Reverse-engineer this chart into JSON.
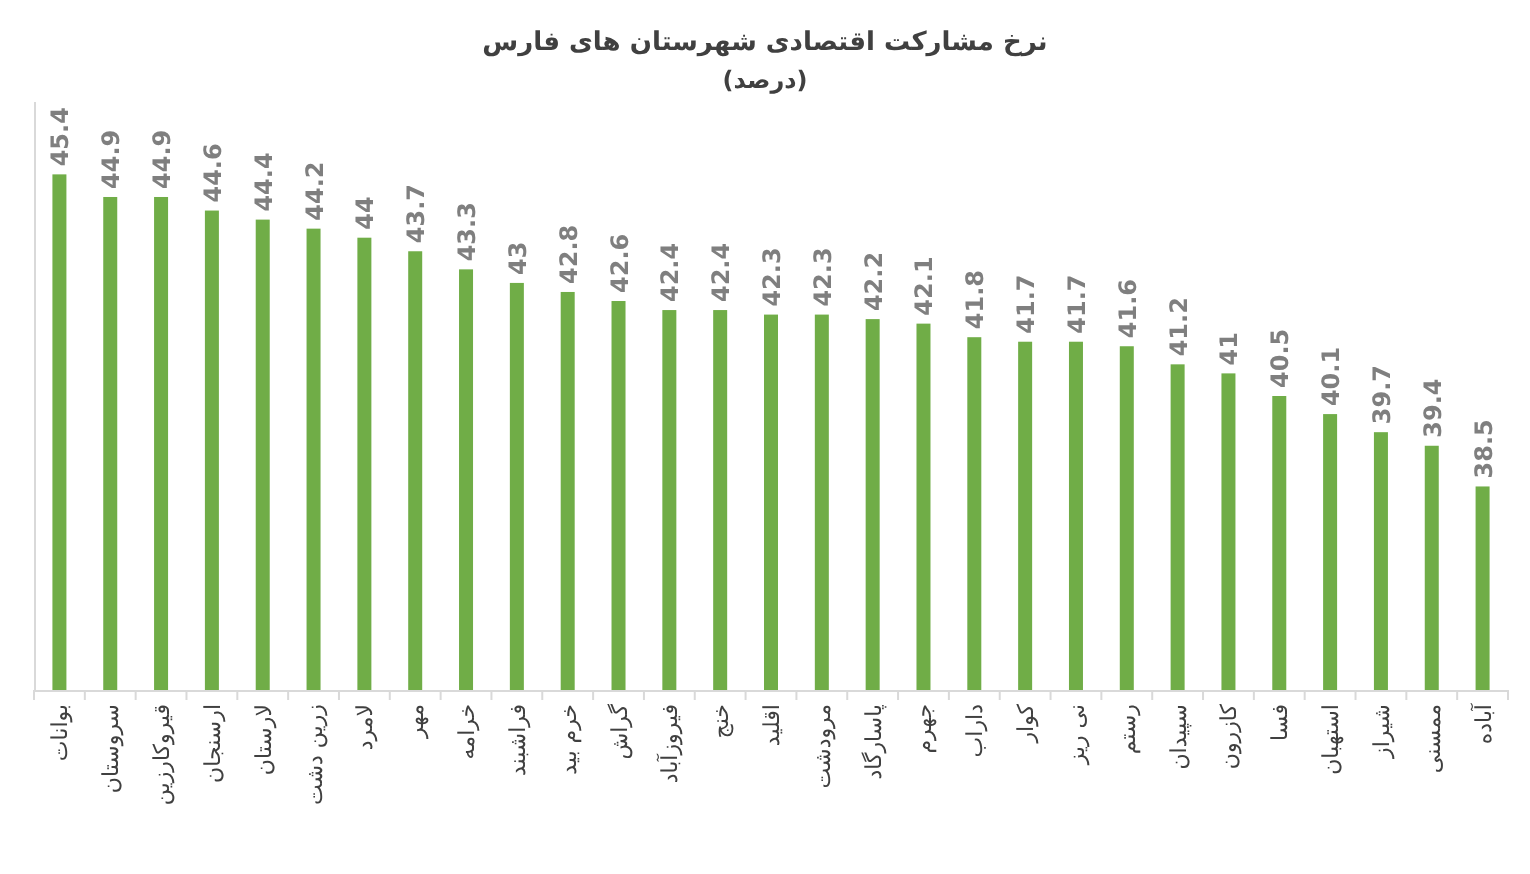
{
  "chart_data": {
    "type": "bar",
    "title": "نرخ مشارکت اقتصادی شهرستان های فارس",
    "subtitle": "(درصد)",
    "categories": [
      "بوانات",
      "سروستان",
      "قیروکارزین",
      "ارسنجان",
      "لارستان",
      "زرین دشت",
      "لامرد",
      "مهر",
      "خرامه",
      "فراشبند",
      "خرم بید",
      "گراش",
      "فیروزآباد",
      "خنج",
      "اقلید",
      "مرودشت",
      "پاسارگاد",
      "جهرم",
      "داراب",
      "کوار",
      "نی ریز",
      "رستم",
      "سپیدان",
      "کازرون",
      "فسا",
      "استهبان",
      "شیراز",
      "ممسنی",
      "آباده"
    ],
    "values": [
      45.4,
      44.9,
      44.9,
      44.6,
      44.4,
      44.2,
      44,
      43.7,
      43.3,
      43,
      42.8,
      42.6,
      42.4,
      42.4,
      42.3,
      42.3,
      42.2,
      42.1,
      41.8,
      41.7,
      41.7,
      41.6,
      41.2,
      41,
      40.5,
      40.1,
      39.7,
      39.4,
      38.5
    ],
    "color": "#70ad47",
    "ylim": [
      34,
      47
    ],
    "data_labels": true
  }
}
